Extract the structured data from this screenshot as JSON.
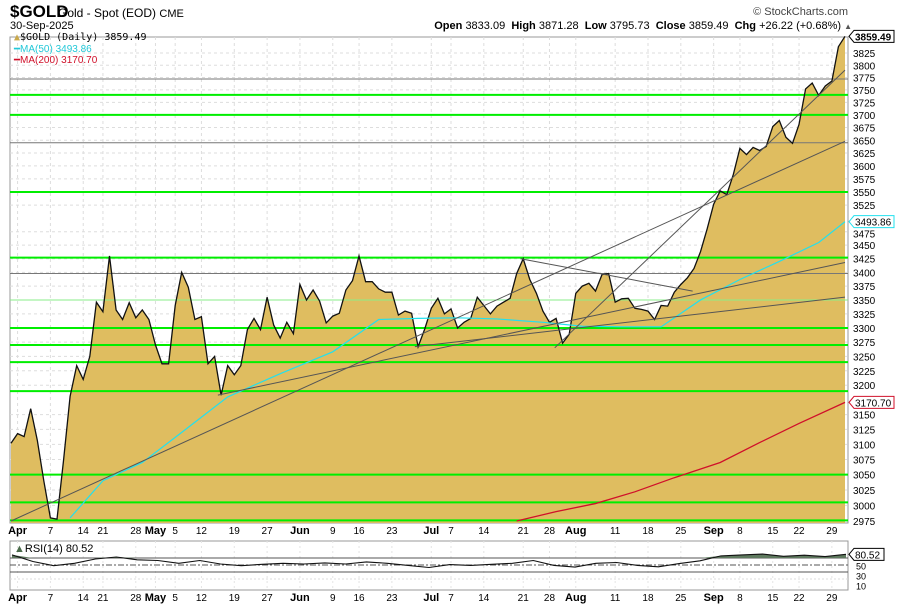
{
  "header": {
    "symbol": "$GOLD",
    "name": "Gold - Spot (EOD)",
    "exchange": "CME",
    "date": "30-Sep-2025",
    "watermark": "© StockCharts.com",
    "open_label": "Open",
    "open": "3833.09",
    "high_label": "High",
    "high": "3871.28",
    "low_label": "Low",
    "low": "3795.73",
    "close_label": "Close",
    "close": "3859.49",
    "chg_label": "Chg",
    "chg": "+26.22 (+0.68%)"
  },
  "legend": {
    "price": "$GOLD (Daily) 3859.49",
    "ma50": "MA(50) 3493.86",
    "ma200": "MA(200) 3170.70",
    "rsi": "RSI(14) 80.52"
  },
  "colors": {
    "fill": "#dfbd60",
    "ma50": "#22e0ee",
    "ma200": "#d0102a",
    "hline": "#00ee00",
    "trend": "#555555"
  },
  "chart_data": {
    "type": "area",
    "title": "$GOLD Gold - Spot (EOD) CME",
    "scale": "log",
    "ylim": [
      2975,
      3870
    ],
    "y_ticks": [
      2975,
      3000,
      3025,
      3050,
      3075,
      3100,
      3125,
      3150,
      3200,
      3225,
      3250,
      3275,
      3300,
      3325,
      3350,
      3375,
      3400,
      3425,
      3450,
      3475,
      3525,
      3550,
      3575,
      3600,
      3625,
      3650,
      3675,
      3700,
      3725,
      3750,
      3775,
      3800,
      3825
    ],
    "x_ticks": [
      {
        "label": "Apr",
        "day": 1,
        "bold": true
      },
      {
        "label": "7",
        "day": 6
      },
      {
        "label": "14",
        "day": 11
      },
      {
        "label": "21",
        "day": 14
      },
      {
        "label": "28",
        "day": 19
      },
      {
        "label": "May",
        "day": 22,
        "bold": true
      },
      {
        "label": "5",
        "day": 25
      },
      {
        "label": "12",
        "day": 29
      },
      {
        "label": "19",
        "day": 34
      },
      {
        "label": "27",
        "day": 39
      },
      {
        "label": "Jun",
        "day": 44,
        "bold": true
      },
      {
        "label": "9",
        "day": 49
      },
      {
        "label": "16",
        "day": 53
      },
      {
        "label": "23",
        "day": 58
      },
      {
        "label": "Jul",
        "day": 64,
        "bold": true
      },
      {
        "label": "7",
        "day": 67
      },
      {
        "label": "14",
        "day": 72
      },
      {
        "label": "21",
        "day": 78
      },
      {
        "label": "28",
        "day": 82
      },
      {
        "label": "Aug",
        "day": 86,
        "bold": true
      },
      {
        "label": "11",
        "day": 92
      },
      {
        "label": "18",
        "day": 97
      },
      {
        "label": "25",
        "day": 102
      },
      {
        "label": "Sep",
        "day": 107,
        "bold": true
      },
      {
        "label": "8",
        "day": 111
      },
      {
        "label": "15",
        "day": 116
      },
      {
        "label": "22",
        "day": 120
      },
      {
        "label": "29",
        "day": 125
      }
    ],
    "price": [
      3102,
      3118,
      3113,
      3160,
      3107,
      3040,
      2980,
      2978,
      3073,
      3181,
      3234,
      3210,
      3250,
      3346,
      3329,
      3430,
      3332,
      3315,
      3345,
      3318,
      3332,
      3315,
      3270,
      3237,
      3237,
      3340,
      3400,
      3373,
      3315,
      3320,
      3237,
      3250,
      3183,
      3234,
      3218,
      3234,
      3297,
      3317,
      3297,
      3355,
      3305,
      3282,
      3310,
      3290,
      3378,
      3350,
      3368,
      3348,
      3309,
      3321,
      3326,
      3368,
      3385,
      3430,
      3383,
      3383,
      3370,
      3364,
      3364,
      3323,
      3330,
      3326,
      3267,
      3298,
      3335,
      3353,
      3325,
      3334,
      3300,
      3310,
      3317,
      3355,
      3340,
      3325,
      3339,
      3346,
      3353,
      3398,
      3425,
      3387,
      3362,
      3330,
      3310,
      3317,
      3273,
      3289,
      3362,
      3375,
      3380,
      3366,
      3396,
      3398,
      3346,
      3352,
      3353,
      3335,
      3333,
      3330,
      3315,
      3340,
      3339,
      3364,
      3378,
      3390,
      3407,
      3438,
      3480,
      3527,
      3552,
      3545,
      3584,
      3634,
      3622,
      3636,
      3630,
      3638,
      3677,
      3689,
      3656,
      3644,
      3681,
      3752,
      3764,
      3739,
      3758,
      3768,
      3838,
      3859.49
    ],
    "ma50": [
      [
        9,
        2980
      ],
      [
        14,
        3040
      ],
      [
        20,
        3070
      ],
      [
        26,
        3120
      ],
      [
        33,
        3180
      ],
      [
        41,
        3220
      ],
      [
        49,
        3258
      ],
      [
        56,
        3315
      ],
      [
        62,
        3317
      ],
      [
        68,
        3318
      ],
      [
        74,
        3316
      ],
      [
        81,
        3310
      ],
      [
        87,
        3303
      ],
      [
        93,
        3302
      ],
      [
        99,
        3302
      ],
      [
        105,
        3350
      ],
      [
        111,
        3387
      ],
      [
        117,
        3420
      ],
      [
        123,
        3455
      ],
      [
        127,
        3493.86
      ]
    ],
    "ma200": [
      [
        77,
        2975
      ],
      [
        83,
        2990
      ],
      [
        89,
        3003
      ],
      [
        95,
        3022
      ],
      [
        101,
        3045
      ],
      [
        108,
        3070
      ],
      [
        114,
        3103
      ],
      [
        120,
        3135
      ],
      [
        127,
        3170.7
      ]
    ],
    "last_labels": {
      "price": "3859.49",
      "ma50": "3493.86",
      "ma200": "3170.70"
    },
    "hlines": [
      {
        "p": 3772,
        "c": "gray"
      },
      {
        "p": 3740,
        "c": "green"
      },
      {
        "p": 3700,
        "c": "green"
      },
      {
        "p": 3645,
        "c": "gray"
      },
      {
        "p": 3550,
        "c": "green"
      },
      {
        "p": 3427,
        "c": "green"
      },
      {
        "p": 3398,
        "c": "gray"
      },
      {
        "p": 3350,
        "c": "lightgreen"
      },
      {
        "p": 3300,
        "c": "green"
      },
      {
        "p": 3270,
        "c": "green"
      },
      {
        "p": 3240,
        "c": "green"
      },
      {
        "p": 3190,
        "c": "green"
      },
      {
        "p": 3050,
        "c": "green"
      },
      {
        "p": 3005,
        "c": "green"
      },
      {
        "p": 2976,
        "c": "green"
      }
    ],
    "trendlines": [
      [
        [
          0,
          2975
        ],
        [
          127,
          3648
        ]
      ],
      [
        [
          31.5,
          3183
        ],
        [
          127,
          3418
        ]
      ],
      [
        [
          61.5,
          3267
        ],
        [
          127,
          3355
        ]
      ],
      [
        [
          77.6,
          3425
        ],
        [
          103.8,
          3366
        ]
      ],
      [
        [
          82.8,
          3265
        ],
        [
          127,
          3790
        ]
      ]
    ],
    "rsi": {
      "values": [
        79,
        60,
        48,
        55,
        67,
        73,
        65,
        63,
        55,
        63,
        53,
        48,
        52,
        55,
        53,
        56,
        53,
        59,
        55,
        49,
        43,
        51,
        49,
        52,
        55,
        63,
        49,
        44,
        55,
        57,
        49,
        45,
        54,
        62,
        76,
        79,
        81,
        75,
        78,
        74,
        80.52
      ],
      "levels": [
        70,
        50,
        30,
        10
      ],
      "last": "80.52",
      "tick_labels": [
        "50",
        "30",
        "10"
      ]
    }
  }
}
